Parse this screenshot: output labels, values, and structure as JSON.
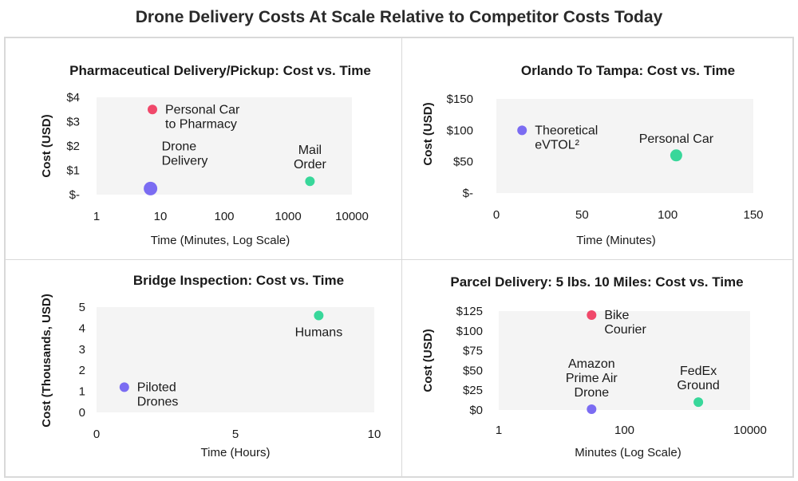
{
  "main_title": "Drone Delivery Costs At Scale Relative to Competitor Costs Today",
  "colors": {
    "red": "#f0486a",
    "purple": "#7b6cf2",
    "green": "#38d79a",
    "plot_bg": "#f4f4f4",
    "divider": "#d9d9d9"
  },
  "chart_data": [
    {
      "type": "scatter",
      "title": "Pharmaceutical Delivery/Pickup: Cost vs. Time",
      "xlabel": "Time (Minutes, Log Scale)",
      "ylabel": "Cost (USD)",
      "xscale": "log",
      "xlim": [
        1,
        10000
      ],
      "ylim": [
        0,
        4
      ],
      "xticks": [
        1,
        10,
        100,
        1000,
        10000
      ],
      "xtick_labels": [
        "1",
        "10",
        "100",
        "1000",
        "10000"
      ],
      "yticks": [
        0,
        1,
        2,
        3,
        4
      ],
      "ytick_labels": [
        "$-",
        "$1",
        "$2",
        "$3",
        "$4"
      ],
      "points": [
        {
          "label": [
            "Personal Car",
            "to Pharmacy"
          ],
          "x": 7.5,
          "y": 3.5,
          "color": "red",
          "size": "small",
          "label_pos": "right"
        },
        {
          "label": [
            "Drone",
            "Delivery"
          ],
          "x": 7,
          "y": 0.25,
          "color": "purple",
          "size": "large",
          "label_pos": "above-right"
        },
        {
          "label": [
            "Mail",
            "Order"
          ],
          "x": 2200,
          "y": 0.55,
          "color": "green",
          "size": "small",
          "label_pos": "above"
        }
      ]
    },
    {
      "type": "scatter",
      "title": "Orlando To Tampa: Cost vs. Time",
      "xlabel": "Time (Minutes)",
      "ylabel": "Cost (USD)",
      "xscale": "linear",
      "xlim": [
        0,
        150
      ],
      "ylim": [
        0,
        150
      ],
      "xticks": [
        0,
        50,
        100,
        150
      ],
      "xtick_labels": [
        "0",
        "50",
        "100",
        "150"
      ],
      "yticks": [
        0,
        50,
        100,
        150
      ],
      "ytick_labels": [
        "$-",
        "$50",
        "$100",
        "$150"
      ],
      "points": [
        {
          "label": [
            "Theoretical",
            "eVTOL²"
          ],
          "x": 15,
          "y": 100,
          "color": "purple",
          "size": "small",
          "label_pos": "right"
        },
        {
          "label": [
            "Personal Car"
          ],
          "x": 105,
          "y": 60,
          "color": "green",
          "size": "medium",
          "label_pos": "above"
        }
      ]
    },
    {
      "type": "scatter",
      "title": "Bridge Inspection: Cost vs. Time",
      "xlabel": "Time (Hours)",
      "ylabel": "Cost (Thousands, USD)",
      "xscale": "linear",
      "xlim": [
        0,
        10
      ],
      "ylim": [
        0,
        5
      ],
      "xticks": [
        0,
        5,
        10
      ],
      "xtick_labels": [
        "0",
        "5",
        "10"
      ],
      "yticks": [
        0,
        1,
        2,
        3,
        4,
        5
      ],
      "ytick_labels": [
        "0",
        "1",
        "2",
        "3",
        "4",
        "5"
      ],
      "points": [
        {
          "label": [
            "Humans"
          ],
          "x": 8,
          "y": 4.6,
          "color": "green",
          "size": "small",
          "label_pos": "below"
        },
        {
          "label": [
            "Piloted",
            "Drones"
          ],
          "x": 1,
          "y": 1.2,
          "color": "purple",
          "size": "small",
          "label_pos": "right"
        }
      ]
    },
    {
      "type": "scatter",
      "title": "Parcel Delivery: 5 lbs. 10 Miles: Cost vs. Time",
      "xlabel": "Minutes (Log Scale)",
      "ylabel": "Cost (USD)",
      "xscale": "log",
      "xlim": [
        1,
        10000
      ],
      "ylim": [
        0,
        125
      ],
      "xticks": [
        1,
        100,
        10000
      ],
      "xtick_labels": [
        "1",
        "100",
        "10000"
      ],
      "yticks": [
        0,
        25,
        50,
        75,
        100,
        125
      ],
      "ytick_labels": [
        "$0",
        "$25",
        "$50",
        "$75",
        "$100",
        "$125"
      ],
      "points": [
        {
          "label": [
            "Bike",
            "Courier"
          ],
          "x": 30,
          "y": 120,
          "color": "red",
          "size": "small",
          "label_pos": "right"
        },
        {
          "label": [
            "Amazon",
            "Prime Air",
            "Drone"
          ],
          "x": 30,
          "y": 1,
          "color": "purple",
          "size": "small",
          "label_pos": "above"
        },
        {
          "label": [
            "FedEx",
            "Ground"
          ],
          "x": 1500,
          "y": 10,
          "color": "green",
          "size": "small",
          "label_pos": "above"
        }
      ]
    }
  ]
}
